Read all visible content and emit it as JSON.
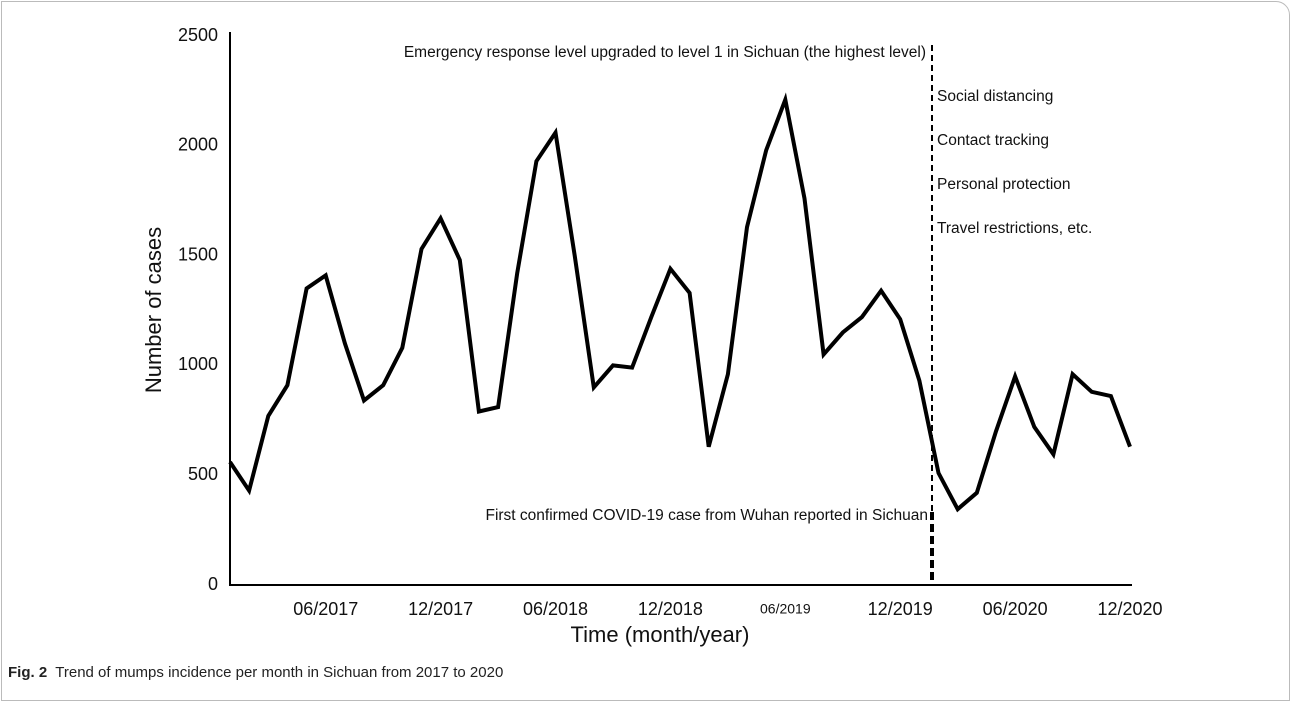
{
  "chart_data": {
    "type": "line",
    "categories": [
      null,
      null,
      null,
      null,
      null,
      "06/2017",
      null,
      null,
      null,
      null,
      null,
      "12/2017",
      null,
      null,
      null,
      null,
      null,
      "06/2018",
      null,
      null,
      null,
      null,
      null,
      "12/2018",
      null,
      null,
      null,
      null,
      null,
      "06/2019",
      null,
      null,
      null,
      null,
      null,
      "12/2019",
      null,
      null,
      null,
      null,
      null,
      "06/2020",
      null,
      null,
      null,
      null,
      null,
      "12/2020"
    ],
    "values": [
      560,
      430,
      770,
      910,
      1350,
      1410,
      1100,
      840,
      910,
      1080,
      1530,
      1670,
      1480,
      790,
      810,
      1420,
      1930,
      2060,
      1500,
      900,
      1000,
      990,
      1220,
      1440,
      1330,
      630,
      960,
      1630,
      1980,
      2210,
      1760,
      1050,
      1150,
      1220,
      1340,
      1210,
      930,
      510,
      345,
      420,
      700,
      950,
      720,
      595,
      960,
      880,
      860,
      630
    ],
    "color": "#000000",
    "ylim": [
      0,
      2500
    ],
    "yticks": [
      0,
      500,
      1000,
      1500,
      2000,
      2500
    ],
    "grid": false,
    "xlabel": "Time (month/year)",
    "ylabel": "Number of cases",
    "annotations": {
      "top": "Emergency response level upgraded to level 1 in Sichuan (the highest level)",
      "measures": [
        "Social distancing",
        "Contact tracking",
        "Personal protection",
        "Travel restrictions, etc."
      ],
      "bottom": "First confirmed COVID-19 case from Wuhan reported in Sichuan"
    }
  },
  "caption": {
    "label": "Fig. 2",
    "text": "Trend of mumps incidence per month in Sichuan from 2017 to 2020"
  }
}
